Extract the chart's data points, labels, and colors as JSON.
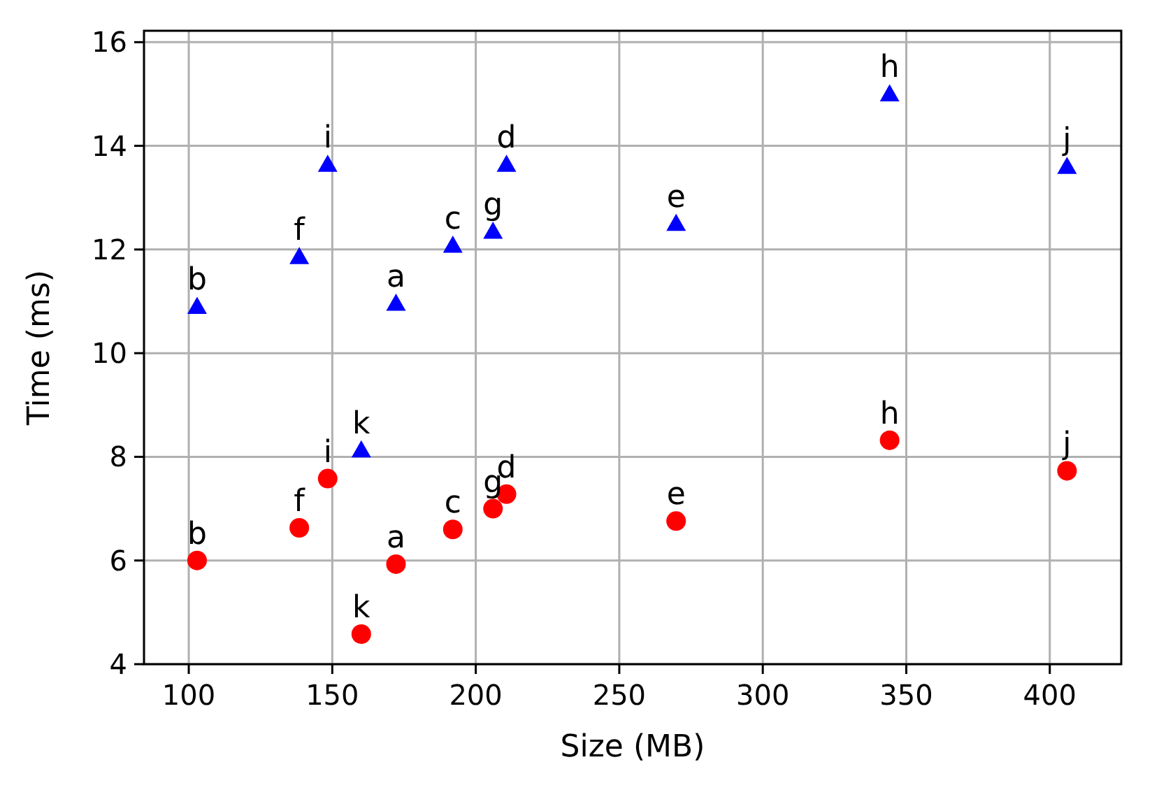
{
  "chart_data": {
    "type": "scatter",
    "xlabel": "Size (MB)",
    "ylabel": "Time (ms)",
    "xlim": [
      84.4,
      424.9
    ],
    "xticks": [
      100,
      150,
      200,
      250,
      300,
      350,
      400
    ],
    "ylim": [
      4,
      16.22
    ],
    "yticks": [
      4,
      6,
      8,
      10,
      12,
      14,
      16
    ],
    "grid": true,
    "series": [
      {
        "color": "#0000ff",
        "marker": "triangle",
        "x": [
          172.2,
          102.9,
          192,
          210.7,
          269.8,
          138.5,
          206,
          344.2,
          148.4,
          406,
          160.1
        ],
        "values": [
          10.96,
          10.9,
          12.08,
          13.64,
          12.5,
          11.86,
          12.35,
          15.0,
          13.64,
          13.6,
          8.13
        ]
      },
      {
        "color": "#ff0000",
        "marker": "circle",
        "x": [
          172.2,
          102.9,
          192,
          210.7,
          269.8,
          138.5,
          206,
          344.2,
          148.4,
          406,
          160.1
        ],
        "values": [
          5.93,
          6.0,
          6.6,
          7.28,
          6.76,
          6.63,
          7.0,
          8.32,
          7.58,
          7.73,
          4.58
        ]
      }
    ],
    "annotations": [
      {
        "text": "a",
        "x": 172.2,
        "y": 10.96
      },
      {
        "text": "b",
        "x": 102.9,
        "y": 10.9
      },
      {
        "text": "c",
        "x": 192,
        "y": 12.08
      },
      {
        "text": "d",
        "x": 210.7,
        "y": 13.64
      },
      {
        "text": "e",
        "x": 269.8,
        "y": 12.5
      },
      {
        "text": "f",
        "x": 138.5,
        "y": 11.86
      },
      {
        "text": "g",
        "x": 206,
        "y": 12.35
      },
      {
        "text": "h",
        "x": 344.2,
        "y": 15.0
      },
      {
        "text": "i",
        "x": 148.4,
        "y": 13.64
      },
      {
        "text": "j",
        "x": 406,
        "y": 13.6
      },
      {
        "text": "k",
        "x": 160.1,
        "y": 8.13
      },
      {
        "text": "a",
        "x": 172.2,
        "y": 5.93
      },
      {
        "text": "b",
        "x": 102.9,
        "y": 6.0
      },
      {
        "text": "c",
        "x": 192,
        "y": 6.6
      },
      {
        "text": "d",
        "x": 210.7,
        "y": 7.28
      },
      {
        "text": "e",
        "x": 269.8,
        "y": 6.76
      },
      {
        "text": "f",
        "x": 138.5,
        "y": 6.63
      },
      {
        "text": "g",
        "x": 206,
        "y": 7.0
      },
      {
        "text": "h",
        "x": 344.2,
        "y": 8.32
      },
      {
        "text": "i",
        "x": 148.4,
        "y": 7.58
      },
      {
        "text": "j",
        "x": 406,
        "y": 7.73
      },
      {
        "text": "k",
        "x": 160.1,
        "y": 4.58
      }
    ]
  }
}
